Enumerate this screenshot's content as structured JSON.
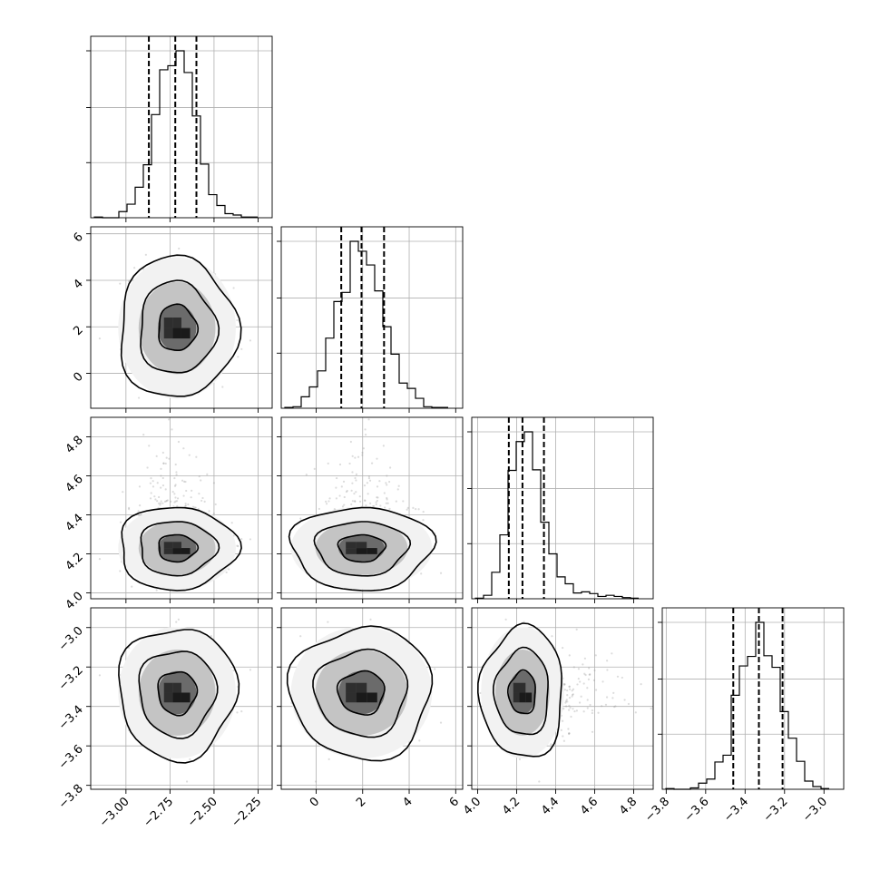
{
  "chart_data": {
    "type": "corner",
    "title": "",
    "parameters": [
      {
        "name": "",
        "range": [
          -3.2,
          -2.17
        ],
        "ticks": [
          -3.0,
          -2.75,
          -2.5,
          -2.25
        ],
        "tick_labels": [
          "−3.00",
          "−2.75",
          "−2.50",
          "−2.25"
        ],
        "mean": -2.71,
        "sd": 0.11,
        "quantiles": [
          -2.87,
          -2.72,
          -2.6
        ]
      },
      {
        "name": "",
        "range": [
          -1.5,
          6.3
        ],
        "ticks": [
          0,
          2,
          4,
          6
        ],
        "tick_labels": [
          "0",
          "2",
          "4",
          "6"
        ],
        "mean": 1.95,
        "sd": 1.0,
        "quantiles": [
          1.08,
          1.95,
          2.92
        ]
      },
      {
        "name": "",
        "range": [
          3.97,
          4.9
        ],
        "ticks": [
          4.0,
          4.2,
          4.4,
          4.6,
          4.8
        ],
        "tick_labels": [
          "4.0",
          "4.2",
          "4.4",
          "4.6",
          "4.8"
        ],
        "mean": 4.23,
        "sd": 0.07,
        "skew_tail": 0.12,
        "quantiles": [
          4.16,
          4.23,
          4.34
        ]
      },
      {
        "name": "",
        "range": [
          -3.82,
          -2.9
        ],
        "ticks": [
          -3.8,
          -3.6,
          -3.4,
          -3.2,
          -3.0
        ],
        "tick_labels": [
          "−3.8",
          "−3.6",
          "−3.4",
          "−3.2",
          "−3.0"
        ],
        "mean": -3.33,
        "sd": 0.11,
        "quantiles": [
          -3.46,
          -3.33,
          -3.21
        ]
      }
    ],
    "histogram_bins": 20,
    "contour_levels": [
      0.39,
      0.86,
      0.99
    ],
    "grid": true,
    "legend": "none"
  }
}
